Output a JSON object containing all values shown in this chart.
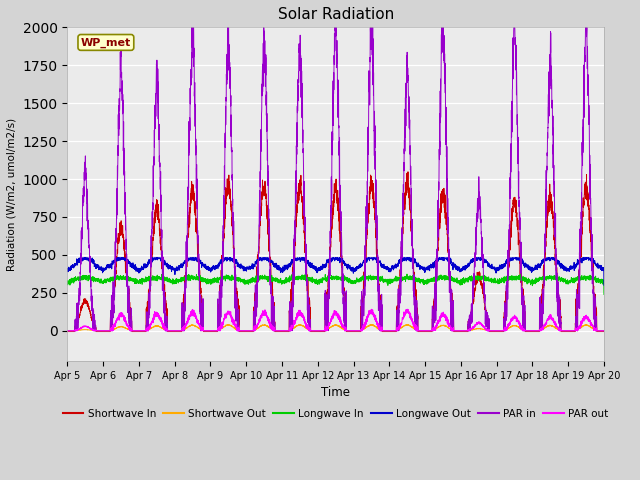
{
  "title": "Solar Radiation",
  "ylabel": "Radiation (W/m2, umol/m2/s)",
  "xlabel": "Time",
  "ylim": [
    -200,
    2000
  ],
  "xlim": [
    0,
    15
  ],
  "fig_bg": "#d4d4d4",
  "plot_bg": "#ebebeb",
  "legend_label": "WP_met",
  "series": {
    "shortwave_in": {
      "label": "Shortwave In",
      "color": "#cc0000"
    },
    "shortwave_out": {
      "label": "Shortwave Out",
      "color": "#ffaa00"
    },
    "longwave_in": {
      "label": "Longwave In",
      "color": "#00cc00"
    },
    "longwave_out": {
      "label": "Longwave Out",
      "color": "#0000cc"
    },
    "par_in": {
      "label": "PAR in",
      "color": "#9900cc"
    },
    "par_out": {
      "label": "PAR out",
      "color": "#ff00ff"
    }
  },
  "xtick_labels": [
    "Apr 5",
    "Apr 6",
    "Apr 7",
    "Apr 8",
    "Apr 9",
    "Apr 10",
    "Apr 11",
    "Apr 12",
    "Apr 13",
    "Apr 14",
    "Apr 15",
    "Apr 16",
    "Apr 17",
    "Apr 18",
    "Apr 19",
    "Apr 20"
  ],
  "xtick_positions": [
    0,
    1,
    2,
    3,
    4,
    5,
    6,
    7,
    8,
    9,
    10,
    11,
    12,
    13,
    14,
    15
  ],
  "par_in_peaks": [
    1000,
    1650,
    1600,
    1870,
    1870,
    1850,
    1820,
    1910,
    1950,
    1640,
    1910,
    840,
    1920,
    1700,
    1920
  ],
  "sw_in_peaks": [
    200,
    680,
    800,
    930,
    960,
    950,
    960,
    940,
    960,
    960,
    900,
    360,
    850,
    870,
    940
  ],
  "par_out_peaks": [
    30,
    110,
    110,
    120,
    120,
    120,
    120,
    120,
    130,
    130,
    110,
    50,
    90,
    90,
    90
  ],
  "lw_in_base": 320,
  "lw_out_base": 400,
  "n_days": 15,
  "pts_per_day": 288
}
